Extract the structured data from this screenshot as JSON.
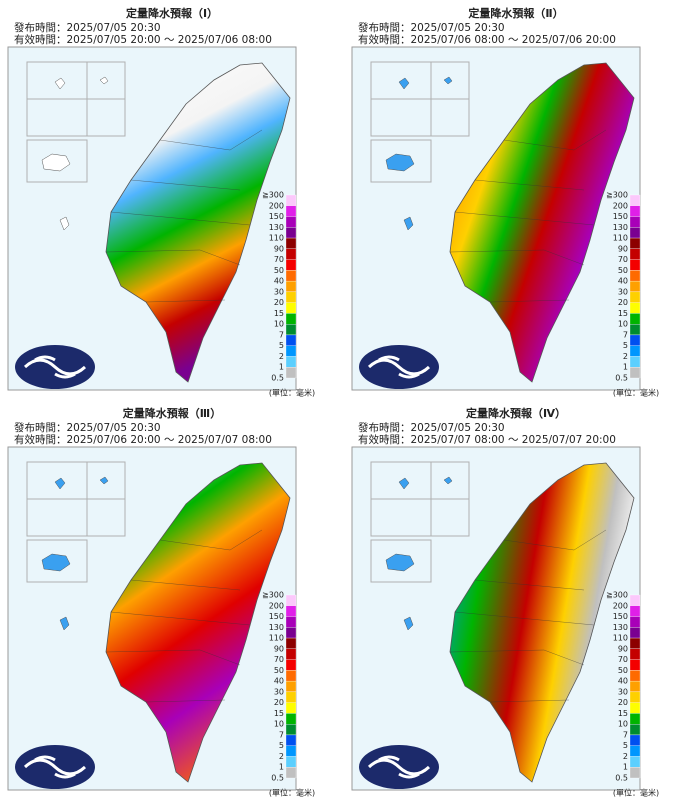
{
  "panels": [
    {
      "title": "定量降水預報（Ⅰ）",
      "issued": "發布時間：2025/07/05 20:30",
      "valid": "有效時間：2025/07/05 20:00 ～ 2025/07/06 08:00"
    },
    {
      "title": "定量降水預報（Ⅱ）",
      "issued": "發布時間：2025/07/05 20:30",
      "valid": "有效時間：2025/07/06 08:00 ～ 2025/07/06 20:00"
    },
    {
      "title": "定量降水預報（Ⅲ）",
      "issued": "發布時間：2025/07/05 20:30",
      "valid": "有效時間：2025/07/06 20:00 ～ 2025/07/07 08:00"
    },
    {
      "title": "定量降水預報（Ⅳ）",
      "issued": "發布時間：2025/07/05 20:30",
      "valid": "有效時間：2025/07/07 08:00 ～ 2025/07/07 20:00"
    }
  ],
  "legend": {
    "labels": [
      "≧300",
      "200",
      "150",
      "130",
      "110",
      "90",
      "70",
      "50",
      "40",
      "30",
      "20",
      "15",
      "10",
      "7",
      "5",
      "2",
      "1",
      "0.5"
    ],
    "colors": [
      "#fbc8fb",
      "#e020e8",
      "#a800b8",
      "#7a0090",
      "#8c0000",
      "#c40000",
      "#f40000",
      "#fe6a00",
      "#fea000",
      "#fed000",
      "#fefe00",
      "#00b400",
      "#008c30",
      "#0050f0",
      "#0096fe",
      "#5ccffe",
      "#c0c0c0"
    ]
  },
  "unit": "(單位：毫米)"
}
